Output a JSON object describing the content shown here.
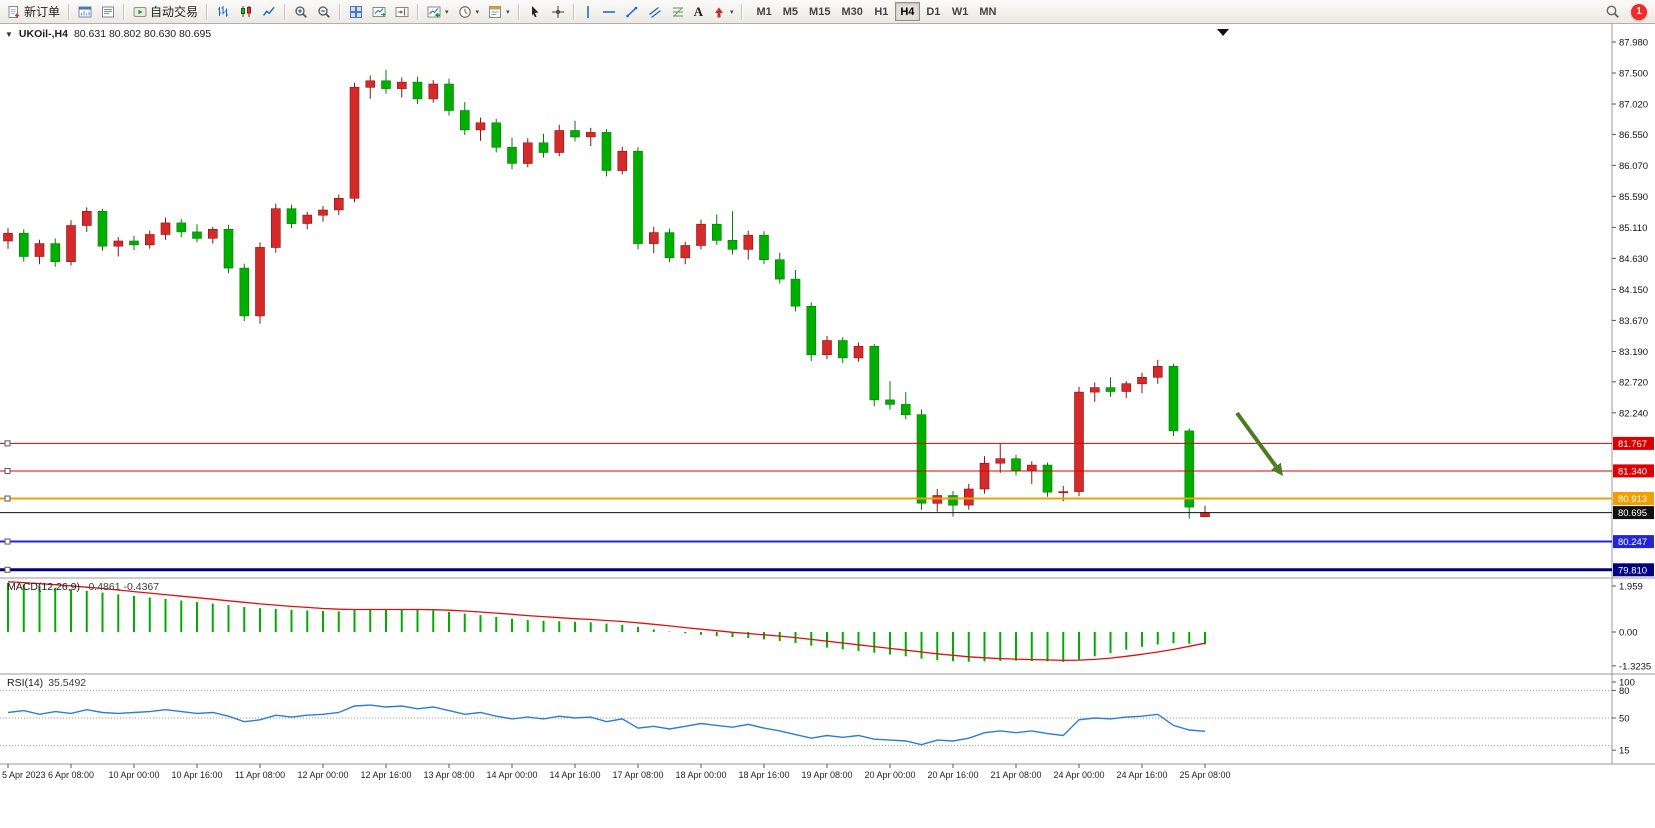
{
  "toolbar": {
    "new_order_label": "新订单",
    "autotrading_label": "自动交易",
    "timeframes": [
      "M1",
      "M5",
      "M15",
      "M30",
      "H1",
      "H4",
      "D1",
      "W1",
      "MN"
    ],
    "active_timeframe": "H4",
    "notification_count": "1"
  },
  "icons": {
    "caret": "▾",
    "text_tool": "A",
    "collapse_triangle": "▼"
  },
  "chart": {
    "title": "UKOil-,H4",
    "quote": "80.631 80.802 80.630 80.695",
    "price_axis": [
      "87.980",
      "87.500",
      "87.020",
      "86.550",
      "86.070",
      "85.590",
      "85.110",
      "84.630",
      "84.150",
      "83.670",
      "83.190",
      "82.720",
      "82.240"
    ],
    "lines": [
      {
        "price": 81.767,
        "label": "81.767",
        "color": "#dd0000",
        "width": 1
      },
      {
        "price": 81.34,
        "label": "81.340",
        "color": "#dd0000",
        "width": 1
      },
      {
        "price": 80.913,
        "label": "80.913",
        "color": "#efa000",
        "width": 2
      },
      {
        "price": 80.247,
        "label": "80.247",
        "color": "#2525d8",
        "width": 2
      },
      {
        "price": 79.81,
        "label": "79.810",
        "color": "#000080",
        "width": 3
      }
    ],
    "current_price_line": {
      "price": 80.695,
      "label": "80.695",
      "color": "#111111"
    }
  },
  "chart_data": {
    "type": "candlestick",
    "symbol": "UKOil-",
    "timeframe": "H4",
    "ylim": [
      79.7,
      88.2
    ],
    "bull_color": "#d42a2a",
    "bull_border": "#8f1212",
    "bear_color": "#00ae00",
    "bear_border": "#067d06",
    "candles": [
      [
        84.9,
        85.1,
        84.78,
        85.02
      ],
      [
        85.02,
        85.08,
        84.58,
        84.66
      ],
      [
        84.66,
        84.92,
        84.54,
        84.86
      ],
      [
        84.86,
        84.94,
        84.5,
        84.58
      ],
      [
        84.58,
        85.22,
        84.52,
        85.14
      ],
      [
        85.14,
        85.42,
        85.04,
        85.36
      ],
      [
        85.36,
        85.4,
        84.75,
        84.82
      ],
      [
        84.82,
        84.96,
        84.66,
        84.9
      ],
      [
        84.9,
        84.98,
        84.76,
        84.84
      ],
      [
        84.84,
        85.06,
        84.78,
        85.0
      ],
      [
        85.0,
        85.26,
        84.92,
        85.18
      ],
      [
        85.18,
        85.24,
        84.96,
        85.04
      ],
      [
        85.04,
        85.16,
        84.88,
        84.94
      ],
      [
        84.94,
        85.12,
        84.86,
        85.08
      ],
      [
        85.08,
        85.15,
        84.4,
        84.48
      ],
      [
        84.48,
        84.55,
        83.66,
        83.74
      ],
      [
        83.74,
        84.88,
        83.62,
        84.8
      ],
      [
        84.8,
        85.48,
        84.72,
        85.4
      ],
      [
        85.4,
        85.46,
        85.1,
        85.17
      ],
      [
        85.17,
        85.35,
        85.08,
        85.3
      ],
      [
        85.3,
        85.44,
        85.2,
        85.38
      ],
      [
        85.38,
        85.62,
        85.3,
        85.56
      ],
      [
        85.56,
        87.35,
        85.5,
        87.28
      ],
      [
        87.28,
        87.46,
        87.1,
        87.38
      ],
      [
        87.38,
        87.55,
        87.18,
        87.26
      ],
      [
        87.26,
        87.43,
        87.12,
        87.36
      ],
      [
        87.36,
        87.44,
        87.02,
        87.1
      ],
      [
        87.1,
        87.39,
        87.04,
        87.33
      ],
      [
        87.33,
        87.41,
        86.84,
        86.92
      ],
      [
        86.92,
        87.05,
        86.54,
        86.62
      ],
      [
        86.62,
        86.81,
        86.45,
        86.73
      ],
      [
        86.73,
        86.79,
        86.27,
        86.35
      ],
      [
        86.35,
        86.5,
        86.01,
        86.1
      ],
      [
        86.1,
        86.49,
        86.04,
        86.42
      ],
      [
        86.42,
        86.56,
        86.19,
        86.27
      ],
      [
        86.27,
        86.7,
        86.21,
        86.61
      ],
      [
        86.61,
        86.76,
        86.44,
        86.51
      ],
      [
        86.51,
        86.65,
        86.37,
        86.58
      ],
      [
        86.58,
        86.63,
        85.9,
        85.99
      ],
      [
        85.99,
        86.36,
        85.93,
        86.29
      ],
      [
        86.29,
        86.35,
        84.77,
        84.86
      ],
      [
        84.86,
        85.12,
        84.71,
        85.03
      ],
      [
        85.03,
        85.09,
        84.57,
        84.64
      ],
      [
        84.64,
        84.89,
        84.54,
        84.83
      ],
      [
        84.83,
        85.23,
        84.77,
        85.16
      ],
      [
        85.16,
        85.31,
        84.84,
        84.91
      ],
      [
        84.91,
        85.36,
        84.69,
        84.77
      ],
      [
        84.77,
        85.06,
        84.61,
        84.99
      ],
      [
        84.99,
        85.05,
        84.54,
        84.61
      ],
      [
        84.61,
        84.72,
        84.24,
        84.31
      ],
      [
        84.31,
        84.45,
        83.81,
        83.89
      ],
      [
        83.89,
        83.95,
        83.04,
        83.14
      ],
      [
        83.14,
        83.43,
        83.07,
        83.36
      ],
      [
        83.36,
        83.41,
        83.01,
        83.09
      ],
      [
        83.09,
        83.33,
        83.03,
        83.27
      ],
      [
        83.27,
        83.31,
        82.34,
        82.44
      ],
      [
        82.44,
        82.73,
        82.29,
        82.37
      ],
      [
        82.37,
        82.56,
        82.14,
        82.21
      ],
      [
        82.21,
        82.29,
        80.74,
        80.84
      ],
      [
        80.84,
        81.06,
        80.71,
        80.96
      ],
      [
        80.96,
        81.03,
        80.63,
        80.81
      ],
      [
        80.81,
        81.14,
        80.74,
        81.06
      ],
      [
        81.06,
        81.57,
        80.99,
        81.46
      ],
      [
        81.46,
        81.76,
        81.31,
        81.53
      ],
      [
        81.53,
        81.59,
        81.27,
        81.34
      ],
      [
        81.34,
        81.49,
        81.14,
        81.43
      ],
      [
        81.43,
        81.47,
        80.94,
        81.01
      ],
      [
        81.01,
        81.11,
        80.87,
        81.02
      ],
      [
        81.02,
        82.64,
        80.95,
        82.56
      ],
      [
        82.56,
        82.71,
        82.41,
        82.63
      ],
      [
        82.63,
        82.79,
        82.49,
        82.57
      ],
      [
        82.57,
        82.73,
        82.47,
        82.69
      ],
      [
        82.69,
        82.86,
        82.54,
        82.79
      ],
      [
        82.79,
        83.06,
        82.69,
        82.96
      ],
      [
        82.96,
        83.0,
        81.88,
        81.96
      ],
      [
        81.96,
        82.0,
        80.6,
        80.78
      ],
      [
        80.631,
        80.802,
        80.63,
        80.695
      ]
    ],
    "indicators": {
      "macd": {
        "label": "MACD(12,26,9)",
        "values_text": "-0.4861 -0.4367",
        "histogram_color": "#00ae00",
        "signal_color": "#e01010",
        "scale": [
          "1.959",
          "0.00",
          "-1.3235"
        ],
        "values": [
          1.92,
          1.86,
          1.8,
          1.73,
          1.67,
          1.61,
          1.54,
          1.47,
          1.41,
          1.35,
          1.29,
          1.23,
          1.17,
          1.11,
          1.05,
          0.98,
          0.93,
          0.9,
          0.87,
          0.84,
          0.82,
          0.81,
          0.86,
          0.89,
          0.9,
          0.89,
          0.87,
          0.84,
          0.79,
          0.72,
          0.66,
          0.59,
          0.52,
          0.47,
          0.44,
          0.42,
          0.4,
          0.38,
          0.33,
          0.28,
          0.19,
          0.1,
          0.02,
          -0.05,
          -0.11,
          -0.16,
          -0.2,
          -0.24,
          -0.29,
          -0.35,
          -0.43,
          -0.53,
          -0.61,
          -0.68,
          -0.74,
          -0.81,
          -0.88,
          -0.95,
          -1.04,
          -1.1,
          -1.14,
          -1.16,
          -1.15,
          -1.13,
          -1.12,
          -1.13,
          -1.15,
          -1.17,
          -1.08,
          -0.95,
          -0.82,
          -0.69,
          -0.58,
          -0.49,
          -0.44,
          -0.46,
          -0.4861
        ],
        "signal": [
          1.96,
          1.93,
          1.89,
          1.85,
          1.8,
          1.75,
          1.7,
          1.64,
          1.58,
          1.52,
          1.46,
          1.4,
          1.34,
          1.28,
          1.22,
          1.16,
          1.1,
          1.05,
          1.0,
          0.96,
          0.92,
          0.89,
          0.88,
          0.88,
          0.88,
          0.88,
          0.88,
          0.87,
          0.85,
          0.82,
          0.78,
          0.74,
          0.69,
          0.64,
          0.6,
          0.56,
          0.52,
          0.49,
          0.45,
          0.41,
          0.36,
          0.3,
          0.24,
          0.17,
          0.11,
          0.05,
          -0.01,
          -0.06,
          -0.11,
          -0.16,
          -0.22,
          -0.29,
          -0.36,
          -0.43,
          -0.5,
          -0.57,
          -0.64,
          -0.71,
          -0.78,
          -0.85,
          -0.91,
          -0.97,
          -1.01,
          -1.04,
          -1.06,
          -1.08,
          -1.09,
          -1.11,
          -1.1,
          -1.07,
          -1.02,
          -0.95,
          -0.87,
          -0.78,
          -0.68,
          -0.56,
          -0.4367
        ]
      },
      "rsi": {
        "label": "RSI(14)",
        "value_text": "35.5492",
        "line_color": "#2a7fd4",
        "levels": [
          80,
          50,
          20
        ],
        "scale": [
          "100",
          "80",
          "50",
          "15"
        ],
        "values": [
          56,
          58,
          54,
          57,
          55,
          59,
          56,
          55,
          56,
          57,
          59,
          57,
          55,
          56,
          52,
          46,
          48,
          53,
          51,
          53,
          54,
          56,
          63,
          64,
          62,
          63,
          60,
          62,
          58,
          54,
          56,
          52,
          49,
          51,
          49,
          52,
          50,
          51,
          46,
          49,
          39,
          41,
          38,
          41,
          44,
          42,
          40,
          43,
          39,
          36,
          32,
          28,
          31,
          29,
          31,
          27,
          26,
          25,
          21,
          26,
          25,
          28,
          34,
          36,
          34,
          36,
          33,
          31,
          48,
          50,
          49,
          51,
          52,
          54,
          42,
          37,
          35.55
        ]
      }
    },
    "x_axis_labels": [
      "5 Apr 2023",
      "6 Apr 08:00",
      "10 Apr 00:00",
      "10 Apr 16:00",
      "11 Apr 08:00",
      "12 Apr 00:00",
      "12 Apr 16:00",
      "13 Apr 08:00",
      "14 Apr 00:00",
      "14 Apr 16:00",
      "17 Apr 08:00",
      "18 Apr 00:00",
      "18 Apr 16:00",
      "19 Apr 08:00",
      "20 Apr 00:00",
      "20 Apr 16:00",
      "21 Apr 08:00",
      "24 Apr 00:00",
      "24 Apr 16:00",
      "25 Apr 08:00"
    ],
    "annotation_arrow": {
      "color": "#4a7d22",
      "from": [
        1237,
        389
      ],
      "to": [
        1283,
        452
      ]
    }
  }
}
